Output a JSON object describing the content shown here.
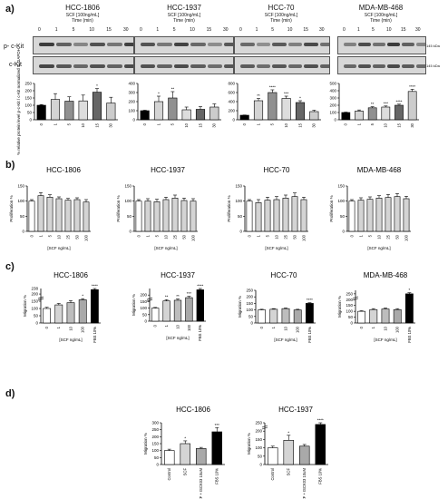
{
  "panels": {
    "a": {
      "letter": "a)",
      "blot_row_labels": [
        "p- c-Kit",
        "c-Kit"
      ],
      "kda": [
        "145 kDa",
        "145 kDa"
      ],
      "time_values": [
        "0",
        "1",
        "5",
        "10",
        "15",
        "30"
      ],
      "cells": [
        {
          "name": "HCC-1806",
          "sub1": "SCF [100ng/mL]",
          "sub2": "Time (min)"
        },
        {
          "name": "HCC-1937",
          "sub1": "SCF [100ng/mL]",
          "sub2": "Time (min)"
        },
        {
          "name": "HCC-70",
          "sub1": "SCF [100ng/mL]",
          "sub2": "Time (min)"
        },
        {
          "name": "MDA-MB-468",
          "sub1": "SCF [100ng/mL]",
          "sub2": "Time (min)"
        }
      ]
    },
    "b": {
      "letter": "b)"
    },
    "c": {
      "letter": "c)"
    },
    "d": {
      "letter": "d)"
    }
  },
  "chart_data": [
    {
      "id": "a1",
      "type": "bar",
      "title": "",
      "ylabel": "% relative protein level p-c-Kit / c-Kit normalized to GAPDH",
      "categories": [
        "0",
        "1",
        "5",
        "10",
        "15",
        "30"
      ],
      "values": [
        100,
        140,
        128,
        130,
        190,
        115
      ],
      "errors": [
        5,
        40,
        30,
        40,
        25,
        40
      ],
      "ylim": [
        0,
        250
      ],
      "yticks": [
        0,
        50,
        100,
        150,
        200,
        250
      ],
      "sig": [
        "",
        "",
        "",
        "",
        "*",
        ""
      ],
      "colors": [
        "#000000",
        "#d4d4d4",
        "#909090",
        "#dddddd",
        "#666666",
        "#cccccc"
      ]
    },
    {
      "id": "a2",
      "type": "bar",
      "title": "",
      "categories": [
        "0",
        "1",
        "5",
        "10",
        "15",
        "30"
      ],
      "values": [
        100,
        200,
        240,
        110,
        115,
        140
      ],
      "errors": [
        5,
        60,
        70,
        30,
        30,
        35
      ],
      "ylim": [
        0,
        400
      ],
      "yticks": [
        0,
        100,
        200,
        300,
        400
      ],
      "sig": [
        "",
        "*",
        "**",
        "",
        "",
        ""
      ],
      "colors": [
        "#000000",
        "#d4d4d4",
        "#909090",
        "#dddddd",
        "#666666",
        "#cccccc"
      ]
    },
    {
      "id": "a3",
      "type": "bar",
      "title": "",
      "categories": [
        "0",
        "1",
        "5",
        "10",
        "15",
        "30"
      ],
      "values": [
        100,
        420,
        600,
        470,
        380,
        180
      ],
      "errors": [
        5,
        50,
        60,
        50,
        40,
        30
      ],
      "ylim": [
        0,
        800
      ],
      "yticks": [
        0,
        200,
        400,
        600,
        800
      ],
      "sig": [
        "",
        "**",
        "****",
        "***",
        "*",
        ""
      ],
      "colors": [
        "#000000",
        "#d4d4d4",
        "#909090",
        "#dddddd",
        "#666666",
        "#cccccc"
      ]
    },
    {
      "id": "a4",
      "type": "bar",
      "title": "",
      "categories": [
        "0",
        "1",
        "5",
        "10",
        "15",
        "30"
      ],
      "values": [
        100,
        120,
        165,
        175,
        200,
        390
      ],
      "errors": [
        5,
        15,
        15,
        15,
        15,
        30
      ],
      "ylim": [
        0,
        500
      ],
      "yticks": [
        0,
        100,
        200,
        300,
        400,
        500
      ],
      "sig": [
        "",
        "",
        "**",
        "***",
        "****",
        "****"
      ],
      "colors": [
        "#000000",
        "#d4d4d4",
        "#909090",
        "#dddddd",
        "#666666",
        "#cccccc"
      ]
    },
    {
      "id": "b1",
      "type": "bar",
      "title": "HCC-1806",
      "xlabel": "[SCF ng/mL]",
      "ylabel": "Proliferation %",
      "categories": [
        "0",
        "1",
        "5",
        "10",
        "25",
        "50",
        "100"
      ],
      "values": [
        100,
        118,
        113,
        108,
        103,
        105,
        97
      ],
      "errors": [
        5,
        10,
        8,
        6,
        6,
        6,
        8
      ],
      "ylim": [
        0,
        150
      ],
      "yticks": [
        0,
        50,
        100,
        150
      ],
      "sig": [
        "",
        "",
        "",
        "",
        "",
        "",
        ""
      ],
      "colors": [
        "#ffffff",
        "#d4d4d4",
        "#d4d4d4",
        "#d4d4d4",
        "#d4d4d4",
        "#d4d4d4",
        "#d4d4d4"
      ]
    },
    {
      "id": "b2",
      "type": "bar",
      "title": "HCC-1937",
      "xlabel": "[SCF ng/mL]",
      "ylabel": "Proliferation %",
      "categories": [
        "0",
        "1",
        "5",
        "10",
        "25",
        "50",
        "100"
      ],
      "values": [
        100,
        100,
        98,
        105,
        110,
        102,
        100
      ],
      "errors": [
        5,
        8,
        8,
        8,
        10,
        8,
        8
      ],
      "ylim": [
        0,
        150
      ],
      "yticks": [
        0,
        50,
        100,
        150
      ],
      "sig": [
        "",
        "",
        "",
        "",
        "",
        "",
        ""
      ],
      "colors": [
        "#ffffff",
        "#d4d4d4",
        "#d4d4d4",
        "#d4d4d4",
        "#d4d4d4",
        "#d4d4d4",
        "#d4d4d4"
      ]
    },
    {
      "id": "b3",
      "type": "bar",
      "title": "HCC-70",
      "xlabel": "[SCF ng/mL]",
      "ylabel": "Proliferation %",
      "categories": [
        "0",
        "1",
        "5",
        "10",
        "25",
        "50",
        "100"
      ],
      "values": [
        100,
        95,
        103,
        105,
        110,
        115,
        105
      ],
      "errors": [
        5,
        10,
        10,
        10,
        10,
        12,
        8
      ],
      "ylim": [
        0,
        150
      ],
      "yticks": [
        0,
        50,
        100,
        150
      ],
      "sig": [
        "",
        "",
        "",
        "",
        "",
        "",
        ""
      ],
      "colors": [
        "#ffffff",
        "#d4d4d4",
        "#d4d4d4",
        "#d4d4d4",
        "#d4d4d4",
        "#d4d4d4",
        "#d4d4d4"
      ]
    },
    {
      "id": "b4",
      "type": "bar",
      "title": "MDA-MB-468",
      "xlabel": "[SCF ng/mL]",
      "ylabel": "Proliferation %",
      "categories": [
        "0",
        "1",
        "5",
        "10",
        "25",
        "50",
        "100"
      ],
      "values": [
        100,
        103,
        106,
        110,
        112,
        115,
        108
      ],
      "errors": [
        5,
        8,
        8,
        8,
        10,
        10,
        8
      ],
      "ylim": [
        0,
        150
      ],
      "yticks": [
        0,
        50,
        100,
        150
      ],
      "sig": [
        "",
        "",
        "",
        "",
        "",
        "",
        ""
      ],
      "colors": [
        "#ffffff",
        "#d4d4d4",
        "#d4d4d4",
        "#d4d4d4",
        "#d4d4d4",
        "#d4d4d4",
        "#d4d4d4"
      ]
    },
    {
      "id": "c1",
      "type": "bar",
      "title": "HCC-1806",
      "xlabel": "[SCF ng/mL]",
      "ylabel": "Migration %",
      "categories": [
        "0",
        "1",
        "10",
        "100",
        "FBS 10%"
      ],
      "values": [
        100,
        125,
        140,
        160,
        230
      ],
      "errors": [
        8,
        10,
        15,
        8,
        8
      ],
      "ylim": [
        0,
        238
      ],
      "yticks": [
        0,
        50,
        100,
        150,
        200
      ],
      "ytick_labels": [
        "0",
        "50",
        "100",
        "150",
        "200"
      ],
      "top_tick": "238",
      "axis_break": true,
      "sig": [
        "",
        "",
        "",
        "*",
        "****"
      ],
      "colors": [
        "#ffffff",
        "#d4d4d4",
        "#bdbdbd",
        "#a9a9a9",
        "#000000"
      ]
    },
    {
      "id": "c2",
      "type": "bar",
      "title": "HCC-1937",
      "xlabel": "[SCF ng/mL]",
      "ylabel": "Migration %",
      "categories": [
        "0",
        "1",
        "10",
        "100",
        "FBS 10%"
      ],
      "values": [
        100,
        155,
        160,
        180,
        240
      ],
      "errors": [
        5,
        10,
        10,
        10,
        10
      ],
      "ylim": [
        0,
        250
      ],
      "yticks": [
        0,
        50,
        100,
        150,
        200
      ],
      "top_tick": "",
      "axis_break": true,
      "sig": [
        "",
        "**",
        "**",
        "***",
        "****"
      ],
      "colors": [
        "#ffffff",
        "#d4d4d4",
        "#bdbdbd",
        "#a9a9a9",
        "#000000"
      ]
    },
    {
      "id": "c3",
      "type": "bar",
      "title": "HCC-70",
      "xlabel": "[SCF ng/mL]",
      "ylabel": "Migration %",
      "categories": [
        "0",
        "1",
        "10",
        "100",
        "FBS 10%"
      ],
      "values": [
        100,
        105,
        110,
        100,
        150
      ],
      "errors": [
        5,
        5,
        5,
        5,
        5
      ],
      "ylim": [
        0,
        250
      ],
      "yticks": [
        0,
        50,
        100,
        150,
        200,
        250
      ],
      "sig": [
        "",
        "",
        "",
        "",
        "****"
      ],
      "colors": [
        "#ffffff",
        "#d4d4d4",
        "#bdbdbd",
        "#a9a9a9",
        "#000000"
      ]
    },
    {
      "id": "c4",
      "type": "bar",
      "title": "MDA-MB-468",
      "xlabel": "[SCF ng/mL]",
      "ylabel": "Migration %",
      "categories": [
        "0",
        "1",
        "10",
        "100",
        "FBS 10%"
      ],
      "values": [
        100,
        115,
        120,
        115,
        250
      ],
      "errors": [
        5,
        8,
        8,
        8,
        10
      ],
      "ylim": [
        0,
        280
      ],
      "yticks": [
        0,
        50,
        100,
        150,
        200,
        250
      ],
      "axis_break": true,
      "sig": [
        "",
        "",
        "",
        "",
        "*"
      ],
      "colors": [
        "#ffffff",
        "#d4d4d4",
        "#bdbdbd",
        "#a9a9a9",
        "#000000"
      ]
    },
    {
      "id": "d1",
      "type": "bar",
      "title": "HCC-1806",
      "ylabel": "Migration %",
      "categories": [
        "Control",
        "SCF",
        "SCF + ISCK03 10uM",
        "FBS 10%"
      ],
      "values": [
        100,
        150,
        115,
        235
      ],
      "errors": [
        10,
        20,
        8,
        30
      ],
      "ylim": [
        0,
        300
      ],
      "yticks": [
        0,
        50,
        100,
        150,
        200,
        250,
        300
      ],
      "sig": [
        "",
        "*",
        "",
        "***"
      ],
      "colors": [
        "#ffffff",
        "#d4d4d4",
        "#a9a9a9",
        "#000000"
      ]
    },
    {
      "id": "d2",
      "type": "bar",
      "title": "HCC-1937",
      "ylabel": "Migration %",
      "categories": [
        "Control",
        "SCF",
        "SCF + ISCK03 10uM",
        "FBS 10%"
      ],
      "values": [
        100,
        145,
        110,
        240
      ],
      "errors": [
        10,
        30,
        10,
        15
      ],
      "ylim": [
        0,
        250
      ],
      "yticks": [
        0,
        50,
        100,
        150,
        200,
        250
      ],
      "axis_break": true,
      "sig": [
        "",
        "*",
        "",
        "****"
      ],
      "colors": [
        "#ffffff",
        "#d4d4d4",
        "#a9a9a9",
        "#000000"
      ]
    }
  ]
}
